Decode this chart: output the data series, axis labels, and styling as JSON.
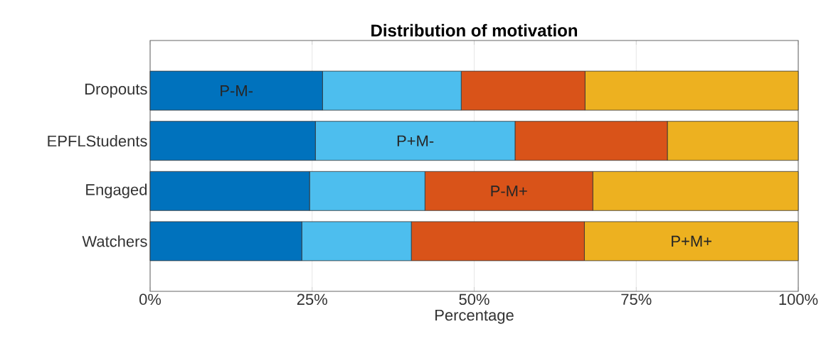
{
  "chart_data": {
    "type": "bar",
    "orientation": "horizontal",
    "stacked": true,
    "title": "Distribution of motivation",
    "xlabel": "Percentage",
    "categories": [
      "Dropouts",
      "EPFLStudents",
      "Engaged",
      "Watchers"
    ],
    "series": [
      {
        "name": "P-M-",
        "color": "#0072bd",
        "values": [
          26.6,
          25.5,
          24.6,
          23.4
        ]
      },
      {
        "name": "P+M-",
        "color": "#4dbeee",
        "values": [
          21.4,
          30.8,
          17.8,
          16.9
        ]
      },
      {
        "name": "P-M+",
        "color": "#d95319",
        "values": [
          19.1,
          23.5,
          25.9,
          26.7
        ]
      },
      {
        "name": "P+M+",
        "color": "#edb120",
        "values": [
          32.9,
          20.2,
          31.7,
          33.0
        ]
      }
    ],
    "xlim": [
      0,
      100
    ],
    "xticks": [
      {
        "value": 0,
        "label": "0%"
      },
      {
        "value": 25,
        "label": "25%"
      },
      {
        "value": 50,
        "label": "50%"
      },
      {
        "value": 75,
        "label": "75%"
      },
      {
        "value": 100,
        "label": "100%"
      }
    ],
    "grid": "x"
  }
}
